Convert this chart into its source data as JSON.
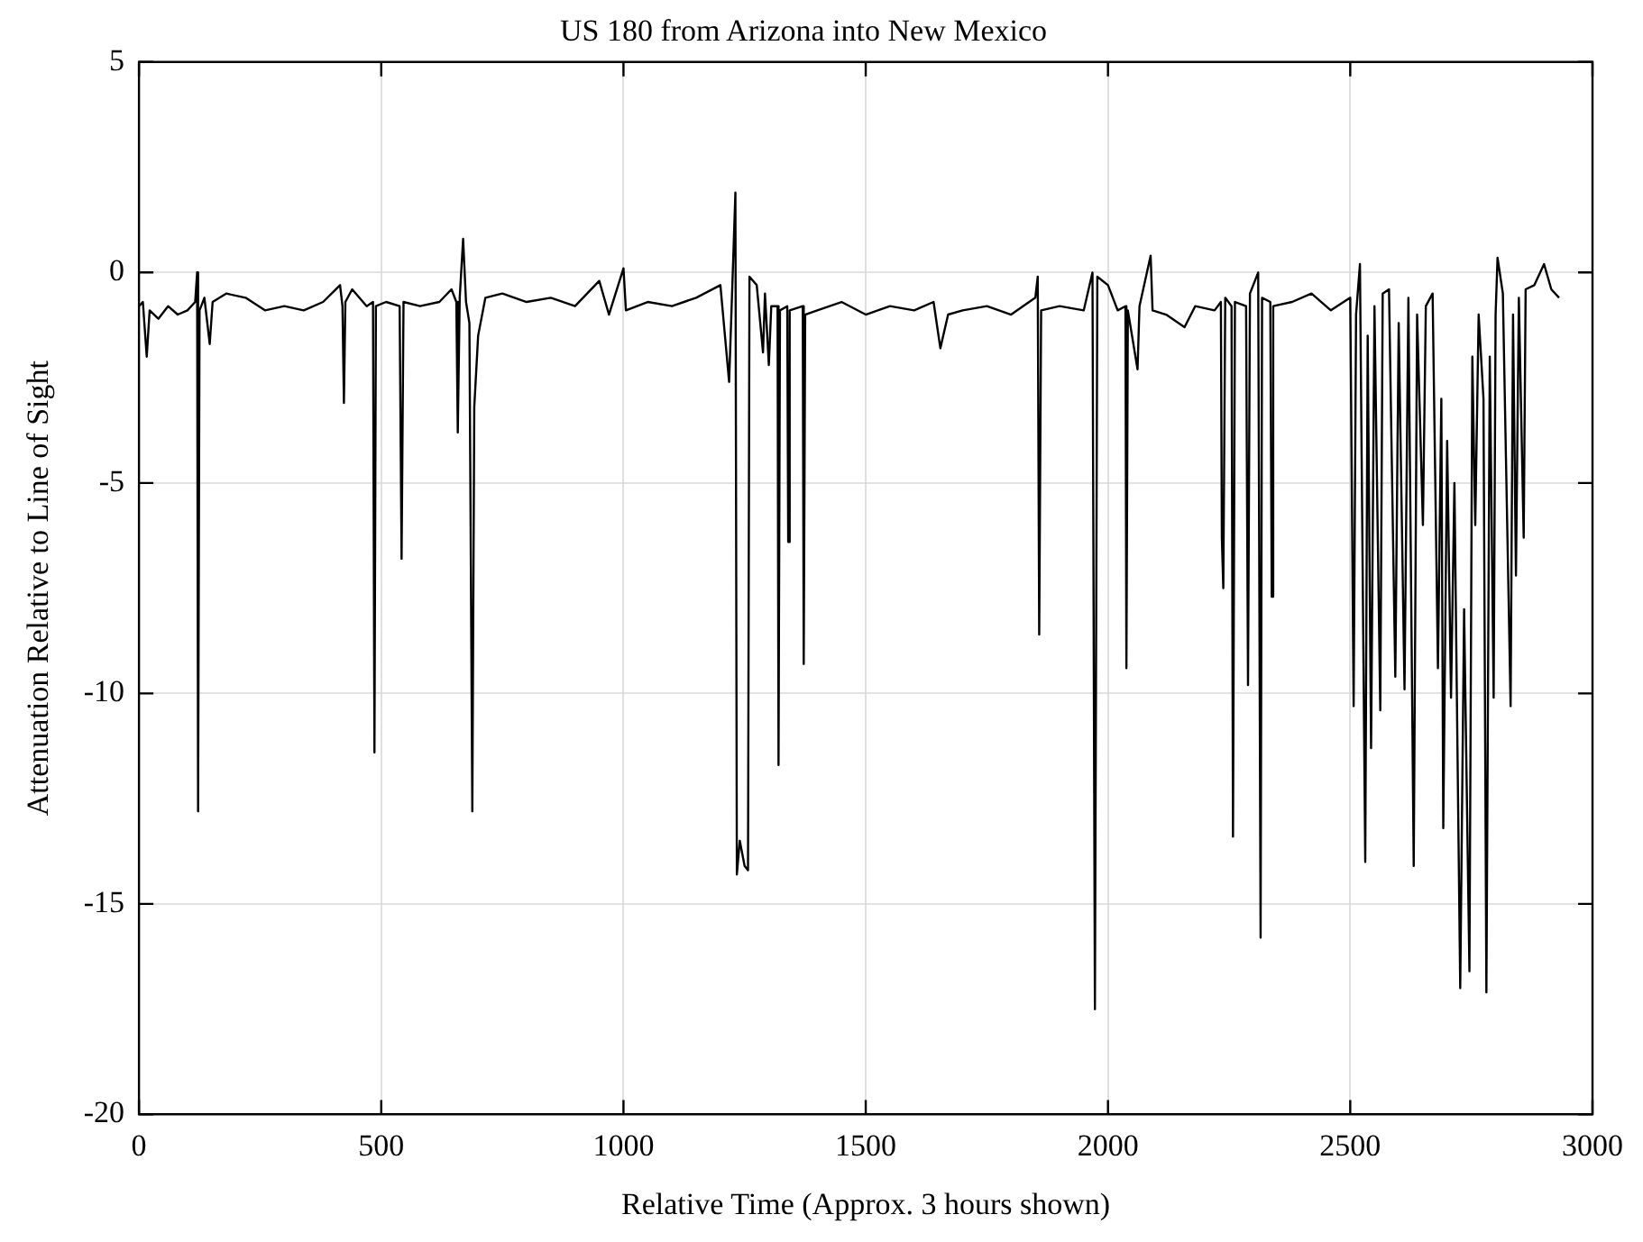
{
  "chart_data": {
    "type": "line",
    "title": "US 180 from Arizona into New Mexico",
    "xlabel": "Relative Time (Approx. 3 hours shown)",
    "ylabel": "Attenuation Relative to Line of Sight",
    "xlim": [
      0,
      3000
    ],
    "xticks": [
      0,
      500,
      1000,
      1500,
      2000,
      2500,
      3000
    ],
    "ylim": [
      -20,
      5
    ],
    "yticks": [
      -20,
      -15,
      -10,
      -5,
      0,
      5
    ],
    "grid": true,
    "legend": false,
    "marker": "none",
    "line_style": "solid",
    "series": [
      {
        "color": "#000000",
        "x": [
          0,
          8,
          16,
          22,
          40,
          60,
          80,
          100,
          116,
          120,
          122,
          125,
          135,
          146,
          152,
          180,
          220,
          260,
          300,
          340,
          380,
          415,
          420,
          423,
          426,
          440,
          470,
          483,
          486,
          489,
          510,
          538,
          542,
          546,
          580,
          620,
          645,
          655,
          658,
          662,
          669,
          675,
          682,
          688,
          692,
          700,
          715,
          750,
          800,
          850,
          900,
          950,
          970,
          1000,
          1005,
          1050,
          1100,
          1150,
          1200,
          1218,
          1225,
          1231,
          1234,
          1240,
          1250,
          1257,
          1260,
          1275,
          1288,
          1292,
          1300,
          1305,
          1318,
          1320,
          1323,
          1338,
          1340,
          1343,
          1370,
          1372,
          1375,
          1400,
          1450,
          1500,
          1550,
          1600,
          1640,
          1654,
          1670,
          1700,
          1750,
          1800,
          1850,
          1855,
          1858,
          1862,
          1900,
          1950,
          1968,
          1973,
          1978,
          2000,
          2020,
          2036,
          2038,
          2041,
          2061,
          2065,
          2088,
          2092,
          2120,
          2158,
          2180,
          2220,
          2233,
          2235,
          2238,
          2242,
          2255,
          2258,
          2262,
          2285,
          2289,
          2293,
          2310,
          2315,
          2318,
          2335,
          2338,
          2341,
          2380,
          2420,
          2460,
          2500,
          2507,
          2512,
          2520,
          2531,
          2536,
          2543,
          2550,
          2562,
          2567,
          2580,
          2593,
          2600,
          2612,
          2620,
          2631,
          2638,
          2650,
          2656,
          2670,
          2681,
          2688,
          2692,
          2700,
          2708,
          2715,
          2727,
          2735,
          2746,
          2752,
          2758,
          2765,
          2775,
          2781,
          2788,
          2796,
          2800,
          2804,
          2815,
          2831,
          2836,
          2842,
          2848,
          2858,
          2862,
          2880,
          2900,
          2915,
          2931
        ],
        "values": [
          -0.8,
          -0.7,
          -2.0,
          -0.9,
          -1.1,
          -0.8,
          -1.0,
          -0.9,
          -0.7,
          0.0,
          -12.8,
          -0.9,
          -0.6,
          -1.7,
          -0.7,
          -0.5,
          -0.6,
          -0.9,
          -0.8,
          -0.9,
          -0.7,
          -0.3,
          -0.8,
          -3.1,
          -0.7,
          -0.4,
          -0.8,
          -0.7,
          -11.4,
          -0.8,
          -0.7,
          -0.8,
          -6.8,
          -0.7,
          -0.8,
          -0.7,
          -0.4,
          -0.7,
          -3.8,
          -0.6,
          0.8,
          -0.7,
          -1.2,
          -12.8,
          -3.2,
          -1.5,
          -0.6,
          -0.5,
          -0.7,
          -0.6,
          -0.8,
          -0.2,
          -1.0,
          0.1,
          -0.9,
          -0.7,
          -0.8,
          -0.6,
          -0.3,
          -2.6,
          -0.2,
          1.9,
          -14.3,
          -13.5,
          -14.1,
          -14.2,
          -0.1,
          -0.3,
          -1.9,
          -0.5,
          -2.2,
          -0.8,
          -0.8,
          -11.7,
          -0.9,
          -0.8,
          -6.4,
          -0.9,
          -0.8,
          -9.3,
          -1.0,
          -0.9,
          -0.7,
          -1.0,
          -0.8,
          -0.9,
          -0.7,
          -1.8,
          -1.0,
          -0.9,
          -0.8,
          -1.0,
          -0.6,
          -0.1,
          -8.6,
          -0.9,
          -0.8,
          -0.9,
          0.0,
          -17.5,
          -0.1,
          -0.3,
          -0.9,
          -0.8,
          -9.4,
          -0.9,
          -2.3,
          -0.8,
          0.4,
          -0.9,
          -1.0,
          -1.3,
          -0.8,
          -0.9,
          -0.7,
          -6.3,
          -7.5,
          -0.6,
          -0.8,
          -13.4,
          -0.7,
          -0.8,
          -9.8,
          -0.5,
          0.0,
          -15.8,
          -0.6,
          -0.7,
          -7.7,
          -0.8,
          -0.7,
          -0.5,
          -0.9,
          -0.6,
          -10.3,
          -1.0,
          0.2,
          -14.0,
          -1.5,
          -11.3,
          -0.8,
          -10.4,
          -0.5,
          -0.4,
          -9.6,
          -1.2,
          -9.9,
          -0.6,
          -14.1,
          -1.0,
          -6.0,
          -0.8,
          -0.5,
          -9.4,
          -3.0,
          -13.2,
          -4.0,
          -10.1,
          -5.0,
          -17.0,
          -8.0,
          -16.6,
          -2.0,
          -6.0,
          -1.0,
          -3.0,
          -17.1,
          -2.0,
          -10.1,
          -1.0,
          0.35,
          -0.5,
          -10.3,
          -1.0,
          -7.2,
          -0.6,
          -6.3,
          -0.4,
          -0.3,
          0.2,
          -0.4,
          -0.6
        ]
      }
    ]
  }
}
